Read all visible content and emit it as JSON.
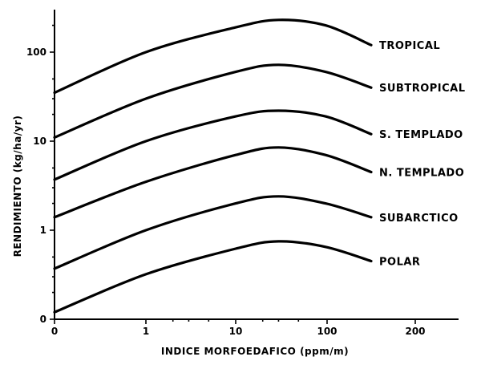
{
  "chart_data": {
    "type": "line",
    "title": "",
    "xlabel": "INDICE MORFOEDAFICO  (ppm/m)",
    "ylabel": "RENDIMIENTO (kg/ha/yr)",
    "y_scale": "log",
    "x_ticks": [
      "0",
      "1",
      "10",
      "100",
      "200"
    ],
    "y_ticks": [
      "0",
      "1",
      "10",
      "100"
    ],
    "grid": false,
    "legend": "labels at right end of each curve",
    "series": [
      {
        "name": "TROPICAL",
        "x": [
          0,
          1,
          10,
          30,
          100,
          150
        ],
        "y": [
          35,
          100,
          190,
          230,
          200,
          120
        ]
      },
      {
        "name": "SUBTROPICAL",
        "x": [
          0,
          1,
          10,
          30,
          100,
          150
        ],
        "y": [
          11,
          30,
          60,
          72,
          60,
          40
        ]
      },
      {
        "name": "S. TEMPLADO",
        "x": [
          0,
          1,
          10,
          30,
          100,
          150
        ],
        "y": [
          3.7,
          10,
          19,
          22,
          19,
          12
        ]
      },
      {
        "name": "N. TEMPLADO",
        "x": [
          0,
          1,
          10,
          30,
          100,
          150
        ],
        "y": [
          1.4,
          3.5,
          7,
          8.5,
          7,
          4.5
        ]
      },
      {
        "name": "SUBARCTICO",
        "x": [
          0,
          1,
          10,
          30,
          100,
          150
        ],
        "y": [
          0.37,
          1.0,
          2.0,
          2.4,
          2.0,
          1.4
        ]
      },
      {
        "name": "POLAR",
        "x": [
          0,
          1,
          10,
          30,
          100,
          150
        ],
        "y": [
          0.12,
          0.32,
          0.62,
          0.75,
          0.65,
          0.45
        ]
      }
    ]
  }
}
